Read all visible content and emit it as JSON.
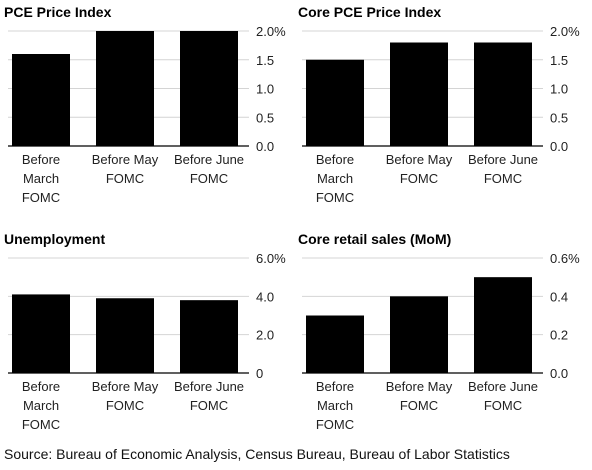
{
  "source": "Source: Bureau of Economic Analysis, Census Bureau, Bureau of Labor Statistics",
  "chart_data": [
    {
      "type": "bar",
      "title": "PCE Price Index",
      "categories": [
        [
          "Before",
          "March",
          "FOMC"
        ],
        [
          "Before May",
          "FOMC"
        ],
        [
          "Before June",
          "FOMC"
        ]
      ],
      "values": [
        1.6,
        2.0,
        2.0
      ],
      "ylim": [
        0,
        2.0
      ],
      "yticks": [
        "0.0",
        "0.5",
        "1.0",
        "1.5",
        "2.0%"
      ],
      "ytick_values": [
        0,
        0.5,
        1.0,
        1.5,
        2.0
      ],
      "axis_position": "right",
      "grid": true,
      "bar_color": "#000000"
    },
    {
      "type": "bar",
      "title": "Core PCE Price Index",
      "categories": [
        [
          "Before",
          "March",
          "FOMC"
        ],
        [
          "Before May",
          "FOMC"
        ],
        [
          "Before June",
          "FOMC"
        ]
      ],
      "values": [
        1.5,
        1.8,
        1.8
      ],
      "ylim": [
        0,
        2.0
      ],
      "yticks": [
        "0.0",
        "0.5",
        "1.0",
        "1.5",
        "2.0%"
      ],
      "ytick_values": [
        0,
        0.5,
        1.0,
        1.5,
        2.0
      ],
      "axis_position": "right",
      "grid": true,
      "bar_color": "#000000"
    },
    {
      "type": "bar",
      "title": "Unemployment",
      "categories": [
        [
          "Before",
          "March",
          "FOMC"
        ],
        [
          "Before May",
          "FOMC"
        ],
        [
          "Before June",
          "FOMC"
        ]
      ],
      "values": [
        4.1,
        3.9,
        3.8
      ],
      "ylim": [
        0,
        6.0
      ],
      "yticks": [
        "0",
        "2.0",
        "4.0",
        "6.0%"
      ],
      "ytick_values": [
        0,
        2.0,
        4.0,
        6.0
      ],
      "axis_position": "right",
      "grid": true,
      "bar_color": "#000000"
    },
    {
      "type": "bar",
      "title": "Core retail sales (MoM)",
      "categories": [
        [
          "Before",
          "March",
          "FOMC"
        ],
        [
          "Before May",
          "FOMC"
        ],
        [
          "Before June",
          "FOMC"
        ]
      ],
      "values": [
        0.3,
        0.4,
        0.5
      ],
      "ylim": [
        0,
        0.6
      ],
      "yticks": [
        "0.0",
        "0.2",
        "0.4",
        "0.6%"
      ],
      "ytick_values": [
        0,
        0.2,
        0.4,
        0.6
      ],
      "axis_position": "right",
      "grid": true,
      "bar_color": "#000000"
    }
  ]
}
